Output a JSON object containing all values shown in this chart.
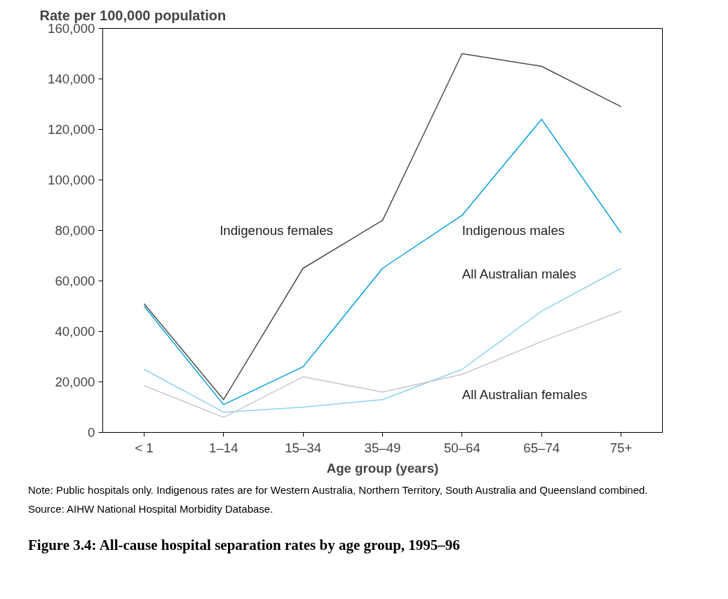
{
  "chart_data": {
    "type": "line",
    "title": "Figure 3.4: All-cause hospital separation rates by age group, 1995–96",
    "xlabel": "Age group (years)",
    "ylabel": "Rate per 100,000 population",
    "categories": [
      "< 1",
      "1–14",
      "15–34",
      "35–49",
      "50–64",
      "65–74",
      "75+"
    ],
    "series": [
      {
        "name": "Indigenous females",
        "color": "#4d4d4d",
        "values": [
          51000,
          13000,
          65000,
          84000,
          150000,
          145000,
          129000
        ]
      },
      {
        "name": "Indigenous males",
        "color": "#00a0e3",
        "values": [
          50000,
          11000,
          26000,
          65000,
          86000,
          124000,
          79000
        ]
      },
      {
        "name": "All Australian males",
        "color": "#8dd3f0",
        "values": [
          25000,
          8000,
          10000,
          13000,
          25000,
          48000,
          65000
        ]
      },
      {
        "name": "All Australian females",
        "color": "#c8c8c8",
        "values": [
          18500,
          6000,
          22000,
          16000,
          23000,
          36000,
          48000
        ]
      }
    ],
    "ylim": [
      0,
      160000
    ],
    "yticks": [
      {
        "value": 0,
        "label": "0"
      },
      {
        "value": 20000,
        "label": "20,000"
      },
      {
        "value": 40000,
        "label": "40,000"
      },
      {
        "value": 60000,
        "label": "60,000"
      },
      {
        "value": 80000,
        "label": "80,000"
      },
      {
        "value": 100000,
        "label": "100,000"
      },
      {
        "value": 120000,
        "label": "120,000"
      },
      {
        "value": 140000,
        "label": "140,000"
      },
      {
        "value": 160000,
        "label": "160,000"
      }
    ],
    "grid": false,
    "marker": "none",
    "line_style": "solid",
    "annotations": [
      "Note: Public hospitals only. Indigenous rates are for Western Australia, Northern Territory, South Australia and Queensland combined.",
      "Source: AIHW National Hospital Morbidity Database."
    ]
  }
}
